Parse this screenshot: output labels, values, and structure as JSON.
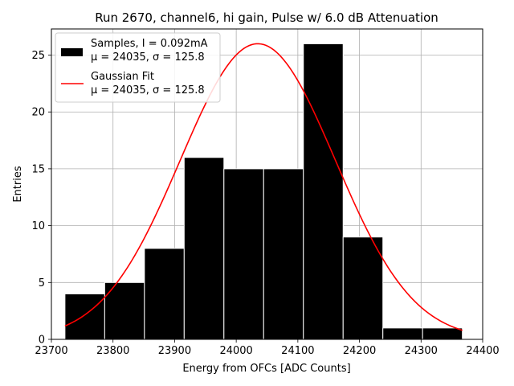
{
  "chart_data": {
    "type": "bar",
    "title": "Run 2670, channel6, hi gain, Pulse w/ 6.0 dB Attenuation",
    "xlabel": "Energy from OFCs [ADC Counts]",
    "ylabel": "Entries",
    "xlim": [
      23700,
      24400
    ],
    "ylim": [
      0,
      27.3
    ],
    "x_ticks": [
      "23700",
      "23800",
      "23900",
      "24000",
      "24100",
      "24200",
      "24300",
      "24400"
    ],
    "y_ticks": [
      "0",
      "5",
      "10",
      "15",
      "20",
      "25"
    ],
    "grid": true,
    "legend_position": "top-left",
    "bin_edges": [
      23722,
      23786.5,
      23851,
      23915.5,
      23980,
      24044.5,
      24109,
      24173.5,
      24238,
      24302.5,
      24367
    ],
    "values": [
      4,
      5,
      8,
      16,
      15,
      15,
      26,
      9,
      1,
      1
    ],
    "bar_color": "#000000",
    "fit": {
      "mu": 24035,
      "sigma": 125.8,
      "amplitude": 26,
      "color": "#ff0000",
      "x_range": [
        23722,
        24367
      ]
    },
    "legend": [
      {
        "line1": "Samples, I = 0.092mA",
        "line2": "μ = 24035, σ = 125.8",
        "kind": "bar",
        "color": "#000000"
      },
      {
        "line1": "Gaussian Fit",
        "line2": "μ = 24035, σ = 125.8",
        "kind": "line",
        "color": "#ff0000"
      }
    ]
  }
}
